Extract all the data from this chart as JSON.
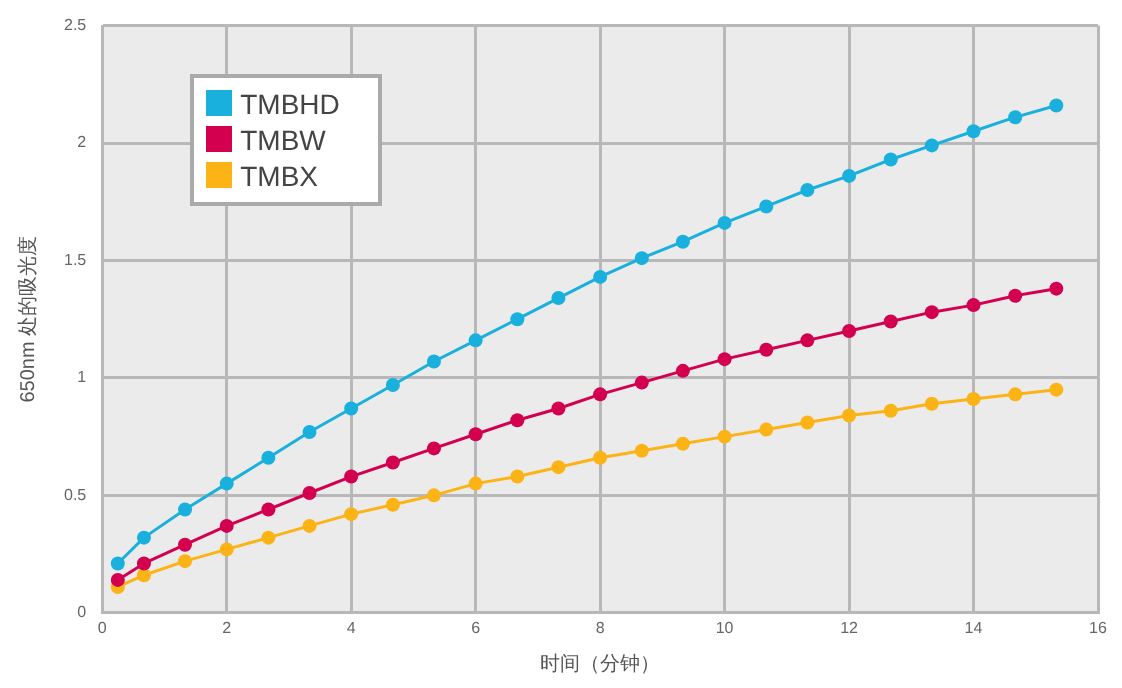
{
  "chart_data": {
    "type": "line",
    "xlabel": "时间（分钟）",
    "ylabel": "650nm 处的吸光度",
    "x": [
      0.25,
      0.67,
      1.33,
      2,
      2.67,
      3.33,
      4,
      4.67,
      5.33,
      6,
      6.67,
      7.33,
      8,
      8.67,
      9.33,
      10,
      10.67,
      11.33,
      12,
      12.67,
      13.33,
      14,
      14.67,
      15.33
    ],
    "series": [
      {
        "name": "TMBHD",
        "color": "#1ab0de",
        "values": [
          0.21,
          0.32,
          0.44,
          0.55,
          0.66,
          0.77,
          0.87,
          0.97,
          1.07,
          1.16,
          1.25,
          1.34,
          1.43,
          1.51,
          1.58,
          1.66,
          1.73,
          1.8,
          1.86,
          1.93,
          1.99,
          2.05,
          2.11,
          2.16
        ]
      },
      {
        "name": "TMBW",
        "color": "#d2004f",
        "values": [
          0.14,
          0.21,
          0.29,
          0.37,
          0.44,
          0.51,
          0.58,
          0.64,
          0.7,
          0.76,
          0.82,
          0.87,
          0.93,
          0.98,
          1.03,
          1.08,
          1.12,
          1.16,
          1.2,
          1.24,
          1.28,
          1.31,
          1.35,
          1.38
        ]
      },
      {
        "name": "TMBX",
        "color": "#fbb315",
        "values": [
          0.11,
          0.16,
          0.22,
          0.27,
          0.32,
          0.37,
          0.42,
          0.46,
          0.5,
          0.55,
          0.58,
          0.62,
          0.66,
          0.69,
          0.72,
          0.75,
          0.78,
          0.81,
          0.84,
          0.86,
          0.89,
          0.91,
          0.93,
          0.95
        ]
      }
    ],
    "xlim": [
      0,
      16
    ],
    "xticks": [
      0,
      2,
      4,
      6,
      8,
      10,
      12,
      14,
      16
    ],
    "ylim": [
      0,
      2.5
    ],
    "yticks": [
      0,
      0.5,
      1,
      1.5,
      2,
      2.5
    ],
    "grid": true,
    "legend": "top left",
    "marker": "circle",
    "line_style": "solid"
  }
}
